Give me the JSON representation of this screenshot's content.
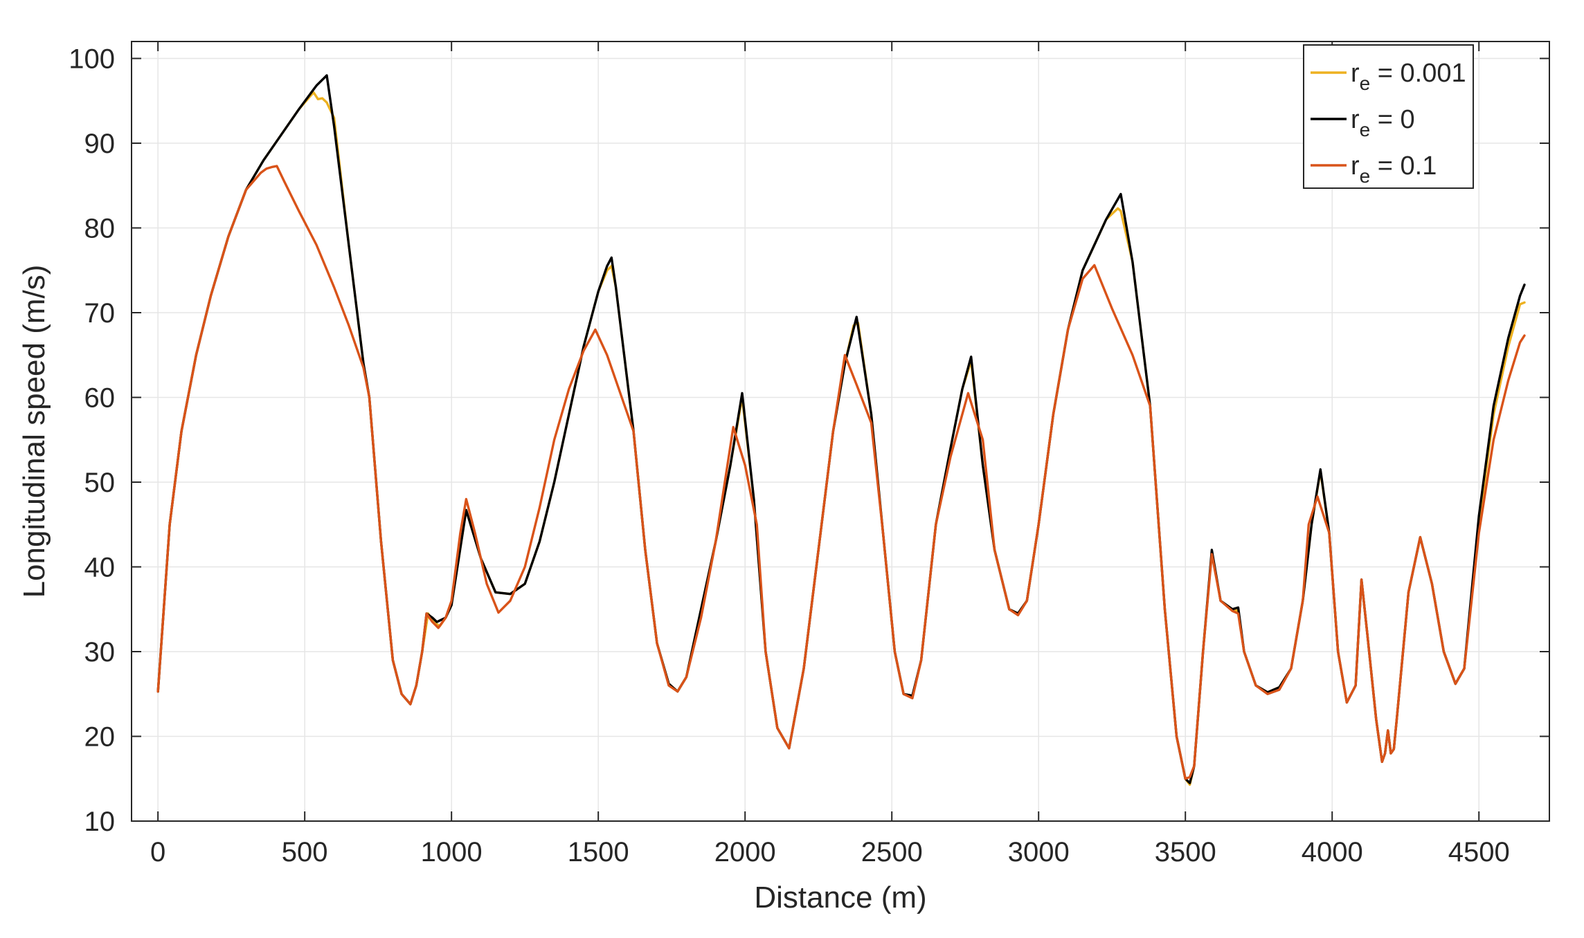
{
  "chart_data": {
    "type": "line",
    "title": "",
    "xlabel": "Distance (m)",
    "ylabel": "Longitudinal speed (m/s)",
    "xlim": [
      -90,
      4740
    ],
    "ylim": [
      10,
      102
    ],
    "xticks": [
      0,
      500,
      1000,
      1500,
      2000,
      2500,
      3000,
      3500,
      4000,
      4500
    ],
    "yticks": [
      10,
      20,
      30,
      40,
      50,
      60,
      70,
      80,
      90,
      100
    ],
    "grid": true,
    "legend_position": "top-right",
    "series": [
      {
        "name_prefix": "r",
        "name_subscript": "e",
        "name_suffix": " = 0.001",
        "color": "#EDB120",
        "x": [
          0,
          40,
          80,
          130,
          180,
          240,
          300,
          360,
          420,
          480,
          530,
          545,
          560,
          575,
          600,
          650,
          700,
          720,
          760,
          800,
          830,
          860,
          880,
          900,
          920,
          940,
          960,
          980,
          1000,
          1050,
          1100,
          1150,
          1200,
          1250,
          1300,
          1350,
          1400,
          1450,
          1500,
          1530,
          1545,
          1560,
          1620,
          1660,
          1700,
          1740,
          1770,
          1800,
          1850,
          1900,
          1950,
          1990,
          2030,
          2070,
          2110,
          2150,
          2200,
          2250,
          2300,
          2340,
          2370,
          2385,
          2430,
          2470,
          2510,
          2540,
          2570,
          2600,
          2650,
          2700,
          2740,
          2770,
          2810,
          2850,
          2900,
          2930,
          2960,
          3000,
          3050,
          3100,
          3150,
          3190,
          3230,
          3270,
          3280,
          3320,
          3380,
          3430,
          3470,
          3500,
          3515,
          3530,
          3560,
          3590,
          3620,
          3660,
          3680,
          3700,
          3740,
          3780,
          3820,
          3860,
          3900,
          3930,
          3960,
          3990,
          4020,
          4050,
          4080,
          4100,
          4120,
          4150,
          4170,
          4180,
          4190,
          4200,
          4210,
          4220,
          4260,
          4300,
          4340,
          4380,
          4420,
          4450,
          4500,
          4550,
          4600,
          4640,
          4655
        ],
        "values": [
          25.3,
          45,
          56,
          65,
          72,
          79,
          84.5,
          88,
          91,
          94,
          96,
          95.2,
          95.3,
          94.8,
          93,
          78,
          64,
          60,
          43,
          29,
          25,
          23.8,
          26,
          30,
          34.5,
          33.5,
          33,
          34,
          35.5,
          46.7,
          41,
          37,
          36.8,
          38,
          43,
          50,
          58,
          66,
          72.5,
          75,
          75.5,
          73,
          56,
          42,
          31,
          26.2,
          25.3,
          27,
          35,
          43,
          52,
          60,
          48,
          30,
          21,
          18.6,
          28,
          42,
          56,
          64,
          68.5,
          68.8,
          58,
          44,
          30,
          25,
          24.6,
          29,
          45,
          54,
          61,
          64.3,
          52,
          42,
          35,
          34.5,
          36,
          45,
          58,
          68,
          75,
          78,
          81,
          82.3,
          82,
          76,
          59,
          35,
          20,
          15,
          14.3,
          16.5,
          30,
          41.8,
          36,
          35,
          34.8,
          30,
          26,
          25.2,
          25.8,
          28,
          36,
          45,
          51.3,
          44,
          30,
          24,
          26,
          38.5,
          32,
          22,
          17,
          18,
          20.7,
          18,
          18.5,
          22,
          37,
          43.5,
          38,
          30,
          26.2,
          28,
          45,
          58,
          66,
          71,
          71.2
        ]
      },
      {
        "name_prefix": "r",
        "name_subscript": "e",
        "name_suffix": " = 0",
        "color": "#000000",
        "x": [
          0,
          40,
          80,
          130,
          180,
          240,
          300,
          360,
          420,
          480,
          540,
          575,
          600,
          650,
          700,
          720,
          760,
          800,
          830,
          860,
          880,
          900,
          915,
          935,
          950,
          980,
          1000,
          1050,
          1100,
          1150,
          1200,
          1250,
          1300,
          1350,
          1400,
          1450,
          1500,
          1530,
          1545,
          1560,
          1620,
          1660,
          1700,
          1740,
          1770,
          1800,
          1850,
          1900,
          1950,
          1990,
          2030,
          2070,
          2110,
          2150,
          2200,
          2250,
          2300,
          2340,
          2380,
          2430,
          2470,
          2510,
          2540,
          2570,
          2600,
          2650,
          2700,
          2740,
          2770,
          2810,
          2850,
          2900,
          2930,
          2960,
          3000,
          3050,
          3100,
          3150,
          3190,
          3230,
          3280,
          3320,
          3380,
          3430,
          3470,
          3500,
          3515,
          3530,
          3560,
          3590,
          3620,
          3660,
          3680,
          3700,
          3740,
          3780,
          3820,
          3860,
          3900,
          3930,
          3960,
          3990,
          4020,
          4050,
          4080,
          4100,
          4120,
          4150,
          4170,
          4180,
          4190,
          4200,
          4210,
          4220,
          4260,
          4300,
          4340,
          4380,
          4420,
          4450,
          4500,
          4550,
          4600,
          4640,
          4655
        ],
        "values": [
          25.3,
          45,
          56,
          65,
          72,
          79,
          84.5,
          88,
          91,
          94,
          96.8,
          98,
          92,
          78,
          64,
          60,
          43,
          29,
          25,
          23.8,
          26,
          30,
          34.5,
          34,
          33.5,
          34,
          35.5,
          46.7,
          41,
          37,
          36.8,
          38,
          43,
          50,
          58,
          66,
          72.5,
          75.5,
          76.5,
          73,
          56,
          42,
          31,
          26.2,
          25.3,
          27,
          35,
          43,
          52,
          60.5,
          48,
          30,
          21,
          18.6,
          28,
          42,
          56,
          64,
          69.5,
          58,
          44,
          30,
          25,
          24.8,
          29,
          45,
          54,
          61,
          64.8,
          52,
          42,
          35,
          34.5,
          36,
          45,
          58,
          68,
          75,
          78,
          81,
          84,
          76,
          59,
          35,
          20,
          15,
          14.5,
          16.5,
          30,
          42,
          36,
          35,
          35.2,
          30,
          26,
          25.2,
          25.8,
          28,
          36,
          45,
          51.5,
          44,
          30,
          24,
          26,
          38.5,
          32,
          22,
          17,
          18,
          20.7,
          18,
          18.5,
          22,
          37,
          43.5,
          38,
          30,
          26.2,
          28,
          46,
          59,
          67,
          72,
          73.3
        ]
      },
      {
        "name_prefix": "r",
        "name_subscript": "e",
        "name_suffix": " = 0.1",
        "color": "#D95319",
        "x": [
          0,
          40,
          80,
          130,
          180,
          240,
          300,
          350,
          370,
          390,
          405,
          430,
          480,
          540,
          600,
          650,
          700,
          720,
          760,
          800,
          830,
          860,
          880,
          900,
          915,
          935,
          955,
          980,
          1000,
          1030,
          1050,
          1080,
          1120,
          1160,
          1200,
          1250,
          1300,
          1350,
          1400,
          1450,
          1490,
          1530,
          1580,
          1620,
          1660,
          1700,
          1740,
          1770,
          1800,
          1850,
          1900,
          1960,
          2000,
          2040,
          2070,
          2110,
          2150,
          2200,
          2250,
          2300,
          2340,
          2380,
          2430,
          2470,
          2510,
          2540,
          2570,
          2600,
          2650,
          2700,
          2760,
          2810,
          2850,
          2900,
          2930,
          2960,
          3000,
          3050,
          3100,
          3150,
          3190,
          3250,
          3320,
          3380,
          3430,
          3470,
          3500,
          3515,
          3530,
          3560,
          3590,
          3620,
          3660,
          3680,
          3700,
          3740,
          3780,
          3820,
          3860,
          3900,
          3920,
          3950,
          3990,
          4020,
          4050,
          4080,
          4100,
          4120,
          4150,
          4170,
          4180,
          4190,
          4200,
          4210,
          4220,
          4260,
          4300,
          4340,
          4380,
          4420,
          4450,
          4500,
          4550,
          4600,
          4640,
          4655
        ],
        "values": [
          25.3,
          45,
          56,
          65,
          72,
          79,
          84.5,
          86.5,
          87,
          87.2,
          87.3,
          85.5,
          82,
          78,
          73,
          68.5,
          63.5,
          60,
          43,
          29,
          25,
          23.8,
          26,
          30,
          34.5,
          33.5,
          32.8,
          34,
          36,
          44,
          48,
          44,
          38,
          34.6,
          36,
          40,
          47,
          55,
          61,
          65.5,
          68,
          65,
          60,
          56,
          42,
          31,
          26,
          25.3,
          27,
          34,
          43,
          56.5,
          52,
          45,
          30,
          21,
          18.6,
          28,
          42,
          56,
          65,
          61.5,
          57,
          44,
          30,
          25,
          24.5,
          29,
          45,
          53,
          60.5,
          55,
          42,
          35,
          34.3,
          36,
          45,
          58,
          68,
          74,
          75.6,
          70.5,
          65,
          59,
          35,
          20,
          15,
          15.2,
          16.5,
          30,
          41.5,
          36,
          34.8,
          34.5,
          30,
          26,
          25,
          25.5,
          28,
          36,
          45,
          48.3,
          44,
          30,
          24,
          26,
          38.5,
          32,
          22,
          17,
          18,
          20.7,
          18,
          18.5,
          22,
          37,
          43.5,
          38,
          30,
          26.2,
          28,
          44,
          55,
          62,
          66.5,
          67.3
        ]
      }
    ]
  }
}
